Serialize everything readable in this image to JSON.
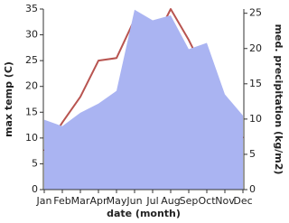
{
  "chart_data": {
    "type": "line_area",
    "xlabel": "date (month)",
    "ylabel": "max temp (C)",
    "y2label": "med. precipitation (kg/m2)",
    "categories": [
      "Jan",
      "Feb",
      "Mar",
      "Apr",
      "May",
      "Jun",
      "Jul",
      "Aug",
      "Sep",
      "Oct",
      "Nov",
      "Dec"
    ],
    "series": [
      {
        "name": "max temp",
        "color": "#b85450",
        "kind": "line",
        "values": [
          7.5,
          13,
          18,
          25,
          25.5,
          33,
          28,
          35,
          29,
          22,
          14,
          10
        ]
      },
      {
        "name": "med. precipitation",
        "color": "#aab4f2",
        "kind": "area",
        "axis": "y2",
        "values": [
          9.9,
          9,
          10.9,
          12.2,
          14,
          25.5,
          24,
          24.7,
          19.9,
          20.8,
          13.5,
          10.5
        ]
      }
    ],
    "ylim": [
      0,
      35
    ],
    "yticks": [
      0,
      5,
      10,
      15,
      20,
      25,
      30,
      35
    ],
    "y2lim": [
      0,
      25.6
    ],
    "y2ticks": [
      0,
      5,
      10,
      15,
      20,
      25
    ]
  }
}
